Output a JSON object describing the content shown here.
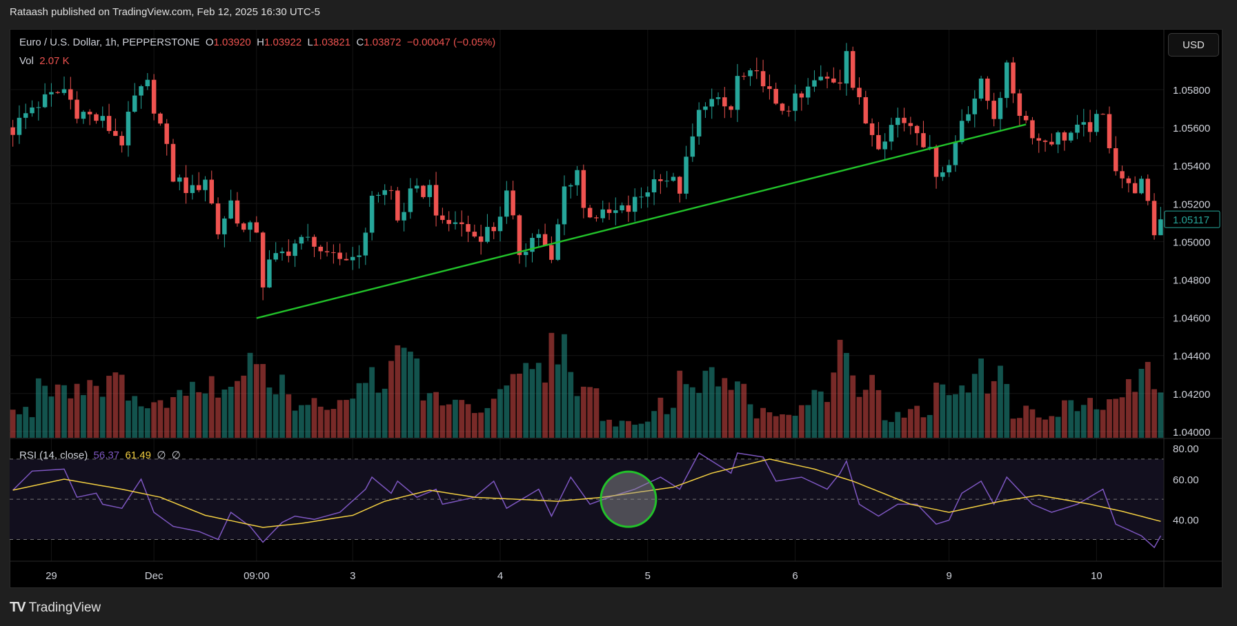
{
  "header": {
    "published": "Rataash published on TradingView.com, Feb 12, 2025 16:30 UTC-5"
  },
  "legend": {
    "symbol": "Euro / U.S. Dollar, 1h, PEPPERSTONE",
    "o_label": "O",
    "o": "1.03920",
    "h_label": "H",
    "h": "1.03922",
    "l_label": "L",
    "l": "1.03821",
    "c_label": "C",
    "c": "1.03872",
    "change": "−0.00047 (−0.05%)",
    "vol_label": "Vol",
    "vol": "2.07 K"
  },
  "rsi_legend": {
    "label": "RSI (14, close)",
    "rsi": "56.37",
    "ma": "61.49",
    "extra1": "∅",
    "extra2": "∅"
  },
  "currency_button": "USD",
  "brand": {
    "name": "TradingView",
    "logo": "TV"
  },
  "colors": {
    "up": "#26a69a",
    "down": "#ef5350",
    "trendline": "#22c22a",
    "rsi": "#7e57c2",
    "rsi_ma": "#f5d142",
    "circle": "#22c22a"
  },
  "chart_data": [
    {
      "type": "candlestick",
      "title": "Euro / U.S. Dollar, 1h, PEPPERSTONE",
      "candles": 180,
      "close_keypoints": [
        [
          0,
          1.0559
        ],
        [
          3,
          1.0571
        ],
        [
          8,
          1.058
        ],
        [
          10,
          1.0569
        ],
        [
          14,
          1.0563
        ],
        [
          17,
          1.0553
        ],
        [
          19,
          1.0575
        ],
        [
          21,
          1.0582
        ],
        [
          23,
          1.0561
        ],
        [
          25,
          1.0534
        ],
        [
          28,
          1.0526
        ],
        [
          30,
          1.0534
        ],
        [
          32,
          1.0505
        ],
        [
          34,
          1.0521
        ],
        [
          36,
          1.0505
        ],
        [
          38,
          1.0507
        ],
        [
          39,
          1.0478
        ],
        [
          40,
          1.0488
        ],
        [
          44,
          1.0499
        ],
        [
          47,
          1.0501
        ],
        [
          49,
          1.049
        ],
        [
          53,
          1.0492
        ],
        [
          55,
          1.0501
        ],
        [
          56,
          1.0526
        ],
        [
          59,
          1.0526
        ],
        [
          60,
          1.0511
        ],
        [
          62,
          1.0524
        ],
        [
          65,
          1.0528
        ],
        [
          67,
          1.0507
        ],
        [
          69,
          1.0511
        ],
        [
          72,
          1.0503
        ],
        [
          75,
          1.0507
        ],
        [
          77,
          1.0524
        ],
        [
          79,
          1.0495
        ],
        [
          82,
          1.0505
        ],
        [
          84,
          1.0488
        ],
        [
          86,
          1.0528
        ],
        [
          88,
          1.0538
        ],
        [
          89,
          1.0517
        ],
        [
          92,
          1.0513
        ],
        [
          96,
          1.0517
        ],
        [
          98,
          1.0524
        ],
        [
          101,
          1.0536
        ],
        [
          104,
          1.0528
        ],
        [
          107,
          1.0567
        ],
        [
          108,
          1.0575
        ],
        [
          112,
          1.0569
        ],
        [
          113,
          1.0586
        ],
        [
          117,
          1.0586
        ],
        [
          119,
          1.0569
        ],
        [
          123,
          1.0575
        ],
        [
          125,
          1.0584
        ],
        [
          129,
          1.0586
        ],
        [
          130,
          1.0604
        ],
        [
          131,
          1.0582
        ],
        [
          133,
          1.0563
        ],
        [
          135,
          1.0553
        ],
        [
          138,
          1.0565
        ],
        [
          141,
          1.0561
        ],
        [
          144,
          1.0538
        ],
        [
          146,
          1.054
        ],
        [
          148,
          1.0565
        ],
        [
          151,
          1.0582
        ],
        [
          153,
          1.0567
        ],
        [
          155,
          1.059
        ],
        [
          157,
          1.0569
        ],
        [
          160,
          1.0553
        ],
        [
          163,
          1.0555
        ],
        [
          167,
          1.0559
        ],
        [
          170,
          1.0565
        ],
        [
          172,
          1.054
        ],
        [
          174,
          1.0528
        ],
        [
          176,
          1.053
        ],
        [
          178,
          1.0505
        ],
        [
          179,
          1.05117
        ]
      ],
      "last_price": "1.05117",
      "y_ticks": [
        "1.05800",
        "1.05600",
        "1.05400",
        "1.05200",
        "1.05000",
        "1.04800",
        "1.04600",
        "1.04400",
        "1.04200",
        "1.04000"
      ],
      "ylim": [
        1.0396,
        1.0616
      ],
      "x_ticks": [
        {
          "label": "29",
          "index": 6
        },
        {
          "label": "Dec",
          "index": 22
        },
        {
          "label": "09:00",
          "index": 38
        },
        {
          "label": "3",
          "index": 53
        },
        {
          "label": "4",
          "index": 76
        },
        {
          "label": "5",
          "index": 99
        },
        {
          "label": "6",
          "index": 122
        },
        {
          "label": "9",
          "index": 146
        },
        {
          "label": "10",
          "index": 169
        }
      ],
      "trendline": {
        "from": [
          38,
          1.04597
        ],
        "to": [
          158,
          1.05617
        ]
      },
      "volume_relative_per_4": [
        0.25,
        0.55,
        0.5,
        0.55,
        0.5,
        0.3,
        0.4,
        0.6,
        0.5,
        0.85,
        0.5,
        0.3,
        0.35,
        0.45,
        0.6,
        0.75,
        0.4,
        0.3,
        0.3,
        0.5,
        0.6,
        0.9,
        0.4,
        0.15,
        0.15,
        0.3,
        0.55,
        0.7,
        0.45,
        0.25,
        0.3,
        0.4,
        0.85,
        0.5,
        0.2,
        0.25,
        0.45,
        0.6,
        0.55,
        0.25,
        0.2,
        0.3,
        0.3,
        0.45,
        0.6
      ]
    },
    {
      "type": "line",
      "title": "RSI (14, close)",
      "y_ticks": [
        "80.00",
        "60.00",
        "40.00"
      ],
      "bands": [
        70,
        50,
        30
      ],
      "series": [
        {
          "name": "RSI",
          "keypoints": [
            [
              0,
              54.5
            ],
            [
              3,
              64
            ],
            [
              8,
              65
            ],
            [
              10,
              51
            ],
            [
              13,
              53
            ],
            [
              14,
              47.5
            ],
            [
              17,
              45.5
            ],
            [
              20,
              60
            ],
            [
              22,
              43.5
            ],
            [
              25,
              36.5
            ],
            [
              29,
              34
            ],
            [
              32,
              30
            ],
            [
              34,
              43.5
            ],
            [
              37,
              36.5
            ],
            [
              39,
              28.6
            ],
            [
              42,
              38.5
            ],
            [
              44,
              41.6
            ],
            [
              47,
              40
            ],
            [
              51,
              43.5
            ],
            [
              55,
              55
            ],
            [
              56,
              61
            ],
            [
              59,
              53
            ],
            [
              60,
              59
            ],
            [
              63,
              51
            ],
            [
              66,
              55
            ],
            [
              67,
              47.5
            ],
            [
              72,
              51
            ],
            [
              75,
              59
            ],
            [
              77,
              45.5
            ],
            [
              82,
              55
            ],
            [
              84,
              41.6
            ],
            [
              87,
              61
            ],
            [
              90,
              47.5
            ],
            [
              93,
              51
            ],
            [
              97,
              55
            ],
            [
              101,
              61
            ],
            [
              104,
              55
            ],
            [
              107,
              73
            ],
            [
              112,
              63
            ],
            [
              113,
              73
            ],
            [
              117,
              71
            ],
            [
              119,
              59
            ],
            [
              123,
              61
            ],
            [
              127,
              55
            ],
            [
              129,
              63
            ],
            [
              130,
              69
            ],
            [
              132,
              47.5
            ],
            [
              135,
              41.6
            ],
            [
              138,
              47.5
            ],
            [
              141,
              47.5
            ],
            [
              144,
              37.6
            ],
            [
              146,
              39.6
            ],
            [
              148,
              53
            ],
            [
              151,
              59
            ],
            [
              153,
              47.5
            ],
            [
              155,
              61
            ],
            [
              159,
              47.5
            ],
            [
              162,
              43.5
            ],
            [
              166,
              47.5
            ],
            [
              170,
              55
            ],
            [
              172,
              37.6
            ],
            [
              176,
              31.8
            ],
            [
              178,
              26
            ],
            [
              179,
              31.8
            ]
          ]
        },
        {
          "name": "RSI MA",
          "keypoints": [
            [
              0,
              54.5
            ],
            [
              8,
              60
            ],
            [
              17,
              55
            ],
            [
              23,
              51
            ],
            [
              30,
              42
            ],
            [
              39,
              36
            ],
            [
              45,
              38
            ],
            [
              53,
              42
            ],
            [
              58,
              49
            ],
            [
              65,
              54.5
            ],
            [
              72,
              51
            ],
            [
              85,
              49
            ],
            [
              92,
              51
            ],
            [
              103,
              56
            ],
            [
              109,
              63
            ],
            [
              118,
              70
            ],
            [
              125,
              65
            ],
            [
              131,
              59
            ],
            [
              140,
              47.5
            ],
            [
              146,
              43.5
            ],
            [
              154,
              49
            ],
            [
              160,
              52
            ],
            [
              168,
              47.5
            ],
            [
              173,
              44
            ],
            [
              179,
              39
            ]
          ]
        }
      ]
    }
  ],
  "annotation": {
    "type": "circle",
    "index": 96,
    "rsi": 50
  }
}
